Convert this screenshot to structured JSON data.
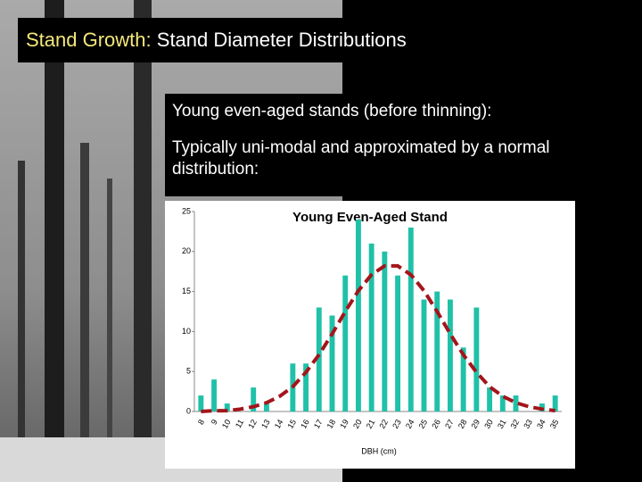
{
  "slide": {
    "title_prefix": "Stand Growth:",
    "title": "Stand Diameter Distributions",
    "text": [
      "Young even-aged stands (before thinning):",
      "Typically uni-modal and approximated by a normal distribution:"
    ]
  },
  "chart_data": {
    "type": "bar",
    "title": "Young Even-Aged Stand",
    "xlabel": "DBH (cm)",
    "categories": [
      8,
      9,
      10,
      11,
      12,
      13,
      14,
      15,
      16,
      17,
      18,
      19,
      20,
      21,
      22,
      23,
      24,
      25,
      26,
      27,
      28,
      29,
      30,
      31,
      32,
      33,
      34,
      35
    ],
    "series": [
      {
        "type": "bar",
        "color": "#1fc1a8",
        "values": [
          2,
          4,
          1,
          0,
          3,
          1,
          0,
          6,
          6,
          13,
          12,
          17,
          24,
          21,
          20,
          17,
          23,
          14,
          15,
          14,
          8,
          13,
          3,
          2,
          2,
          0,
          1,
          2
        ]
      },
      {
        "type": "line",
        "color": "#a3151b",
        "values": [
          0.0,
          0.1,
          0.1,
          0.3,
          0.6,
          1.1,
          1.9,
          3.1,
          4.9,
          7.1,
          9.7,
          12.5,
          15.1,
          17.1,
          18.2,
          18.2,
          17.1,
          15.1,
          12.5,
          9.7,
          7.1,
          4.9,
          3.1,
          1.9,
          1.1,
          0.6,
          0.3,
          0.1
        ]
      }
    ],
    "ylim": [
      0,
      25
    ],
    "yticks": [
      0,
      5,
      10,
      15,
      20,
      25
    ]
  }
}
